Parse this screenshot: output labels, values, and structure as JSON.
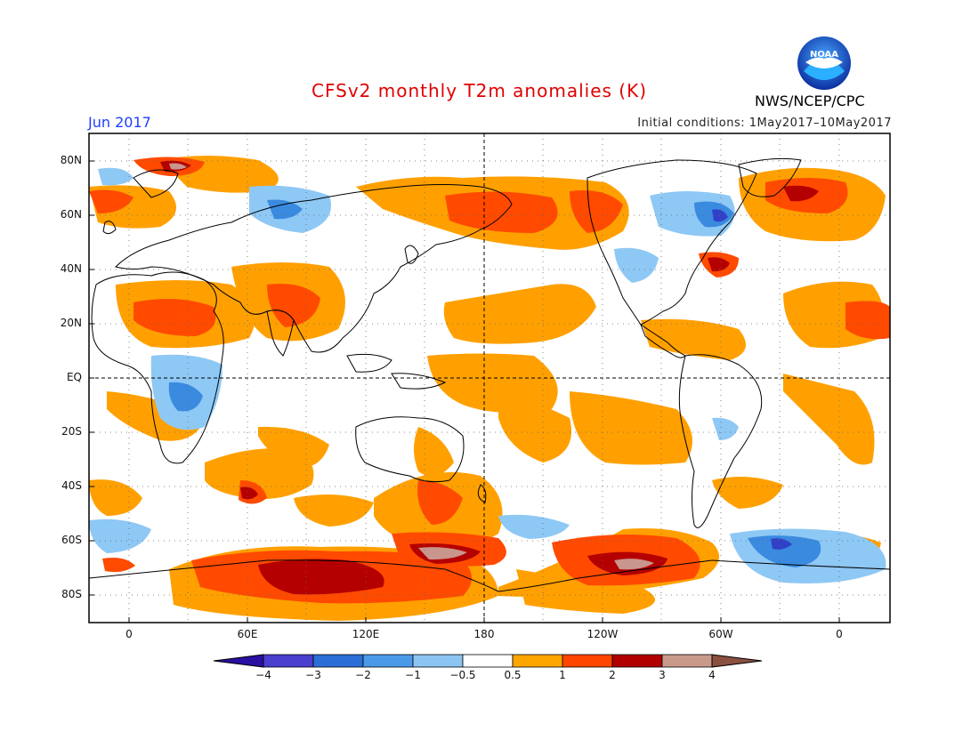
{
  "title": "CFSv2 monthly T2m anomalies (K)",
  "valid_month": "Jun 2017",
  "initial_conditions": "Initial conditions: 1May2017–10May2017",
  "agency": "NWS/NCEP/CPC",
  "logo_text": "NOAA",
  "y_ticks": [
    "80N",
    "60N",
    "40N",
    "20N",
    "EQ",
    "20S",
    "40S",
    "60S",
    "80S"
  ],
  "x_ticks": [
    "0",
    "60E",
    "120E",
    "180",
    "120W",
    "60W",
    "0"
  ],
  "colorbar": {
    "labels": [
      "−4",
      "−3",
      "−2",
      "−1",
      "−0.5",
      "0.5",
      "1",
      "2",
      "3",
      "4"
    ],
    "colors": [
      "#2a0fa0",
      "#4a3fcf",
      "#2b6fd6",
      "#4a9ae8",
      "#8cc4f2",
      "#ffffff",
      "#ffa500",
      "#ff4500",
      "#b00000",
      "#c99a8a",
      "#8a5040"
    ]
  },
  "colors": {
    "orange": "#ffa000",
    "red": "#ff4a00",
    "dark_red": "#b40000",
    "pink_brown": "#c8968c",
    "light_blue": "#8ec8f5",
    "blue": "#3a8ae0",
    "deep_blue": "#3040c8"
  }
}
